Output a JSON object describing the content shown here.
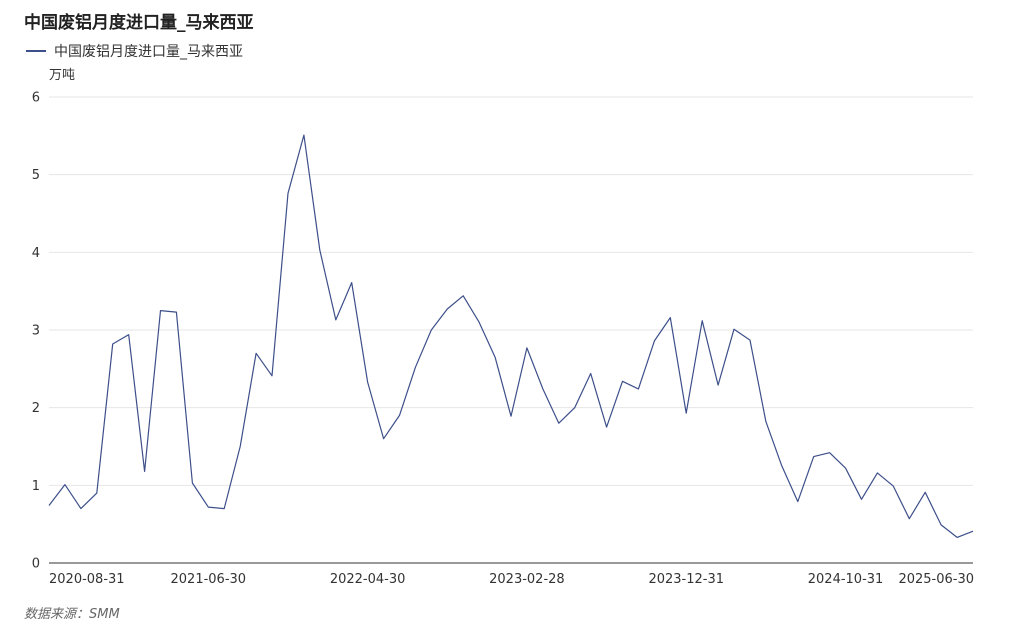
{
  "chart_data": {
    "type": "line",
    "title": "中国废铝月度进口量_马来西亚",
    "ylabel": "万吨",
    "xlabel": "",
    "ylim": [
      0,
      6
    ],
    "yticks": [
      "0",
      "1",
      "2",
      "3",
      "4",
      "5",
      "6"
    ],
    "grid": true,
    "legend_position": "top-left",
    "x_tick_labels": [
      {
        "label": "2020-08-31",
        "index": 0
      },
      {
        "label": "2021-06-30",
        "index": 10
      },
      {
        "label": "2022-04-30",
        "index": 20
      },
      {
        "label": "2023-02-28",
        "index": 30
      },
      {
        "label": "2023-12-31",
        "index": 40
      },
      {
        "label": "2024-10-31",
        "index": 50
      },
      {
        "label": "2025-06-30",
        "index": 58
      }
    ],
    "x": [
      "2020-08",
      "2020-09",
      "2020-10",
      "2020-11",
      "2020-12",
      "2021-01",
      "2021-02",
      "2021-03",
      "2021-04",
      "2021-05",
      "2021-06",
      "2021-07",
      "2021-08",
      "2021-09",
      "2021-10",
      "2021-11",
      "2021-12",
      "2022-01",
      "2022-02",
      "2022-03",
      "2022-04",
      "2022-05",
      "2022-06",
      "2022-07",
      "2022-08",
      "2022-09",
      "2022-10",
      "2022-11",
      "2022-12",
      "2023-01",
      "2023-02",
      "2023-03",
      "2023-04",
      "2023-05",
      "2023-06",
      "2023-07",
      "2023-08",
      "2023-09",
      "2023-10",
      "2023-11",
      "2023-12",
      "2024-01",
      "2024-02",
      "2024-03",
      "2024-04",
      "2024-05",
      "2024-06",
      "2024-07",
      "2024-08",
      "2024-09",
      "2024-10",
      "2024-11",
      "2024-12",
      "2025-01",
      "2025-02",
      "2025-03",
      "2025-04",
      "2025-05",
      "2025-06"
    ],
    "series": [
      {
        "name": "中国废铝月度进口量_马来西亚",
        "color": "#3d4f8a",
        "values": [
          0.74,
          1.01,
          0.7,
          0.9,
          2.82,
          2.94,
          1.18,
          3.25,
          3.23,
          1.03,
          0.72,
          0.7,
          1.5,
          2.7,
          2.41,
          4.76,
          5.51,
          4.03,
          3.13,
          3.61,
          2.33,
          1.6,
          1.9,
          2.52,
          3.0,
          3.27,
          3.44,
          3.1,
          2.65,
          1.89,
          2.77,
          2.24,
          1.8,
          2.0,
          2.44,
          1.75,
          2.34,
          2.24,
          2.86,
          3.16,
          1.93,
          3.12,
          2.29,
          3.01,
          2.87,
          1.82,
          1.25,
          0.79,
          1.37,
          1.42,
          1.22,
          0.82,
          1.16,
          0.99,
          0.57,
          0.91,
          0.49,
          0.33,
          0.41
        ]
      }
    ]
  },
  "source": "数据来源：SMM"
}
